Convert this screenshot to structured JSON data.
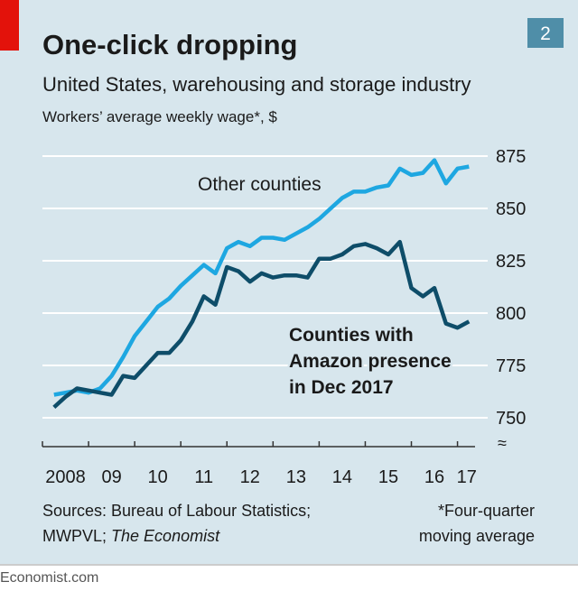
{
  "chart_data": {
    "type": "line",
    "badge": "2",
    "title": "One-click dropping",
    "subtitle": "United States, warehousing and storage industry",
    "y_label": "Workers’ average weekly wage*, $",
    "x": [
      2008.25,
      2008.5,
      2008.75,
      2009,
      2009.25,
      2009.5,
      2009.75,
      2010,
      2010.25,
      2010.5,
      2010.75,
      2011,
      2011.25,
      2011.5,
      2011.75,
      2012,
      2012.25,
      2012.5,
      2012.75,
      2013,
      2013.25,
      2013.5,
      2013.75,
      2014,
      2014.25,
      2014.5,
      2014.75,
      2015,
      2015.25,
      2015.5,
      2015.75,
      2016,
      2016.25,
      2016.5,
      2016.75,
      2017,
      2017.25
    ],
    "series": [
      {
        "name": "Other counties",
        "color": "#1ea7e1",
        "values": [
          761,
          762,
          763,
          762,
          764,
          770,
          779,
          789,
          796,
          803,
          807,
          813,
          818,
          823,
          819,
          831,
          834,
          832,
          836,
          836,
          835,
          838,
          841,
          845,
          850,
          855,
          858,
          858,
          860,
          861,
          869,
          866,
          867,
          873,
          862,
          869,
          870
        ]
      },
      {
        "name": "Counties with Amazon presence in Dec 2017",
        "color": "#0e4d69",
        "values": [
          755,
          760,
          764,
          763,
          762,
          761,
          770,
          769,
          775,
          781,
          781,
          787,
          796,
          808,
          804,
          822,
          820,
          815,
          819,
          817,
          818,
          818,
          817,
          826,
          826,
          828,
          832,
          833,
          831,
          828,
          834,
          812,
          808,
          812,
          795,
          793,
          796
        ]
      }
    ],
    "annotations": [
      {
        "lines": [
          "Other counties"
        ]
      },
      {
        "lines": [
          "Counties with",
          "Amazon presence",
          "in Dec 2017"
        ]
      }
    ],
    "xlim": [
      2008,
      2017.4
    ],
    "xticks": [
      {
        "value": 2008,
        "label": "2008"
      },
      {
        "value": 2009,
        "label": "09"
      },
      {
        "value": 2010,
        "label": "10"
      },
      {
        "value": 2011,
        "label": "11"
      },
      {
        "value": 2012,
        "label": "12"
      },
      {
        "value": 2013,
        "label": "13"
      },
      {
        "value": 2014,
        "label": "14"
      },
      {
        "value": 2015,
        "label": "15"
      },
      {
        "value": 2016,
        "label": "16"
      },
      {
        "value": 2017,
        "label": "17"
      }
    ],
    "ylim": [
      750,
      875
    ],
    "yticks": [
      750,
      775,
      800,
      825,
      850,
      875
    ],
    "grid": true,
    "source": {
      "line1": "Sources: Bureau of Labour Statistics;",
      "line2": "MWPVL;",
      "line2_italic": "The Economist"
    },
    "note": [
      "*Four-quarter",
      "moving average"
    ],
    "footer": "Economist.com"
  }
}
